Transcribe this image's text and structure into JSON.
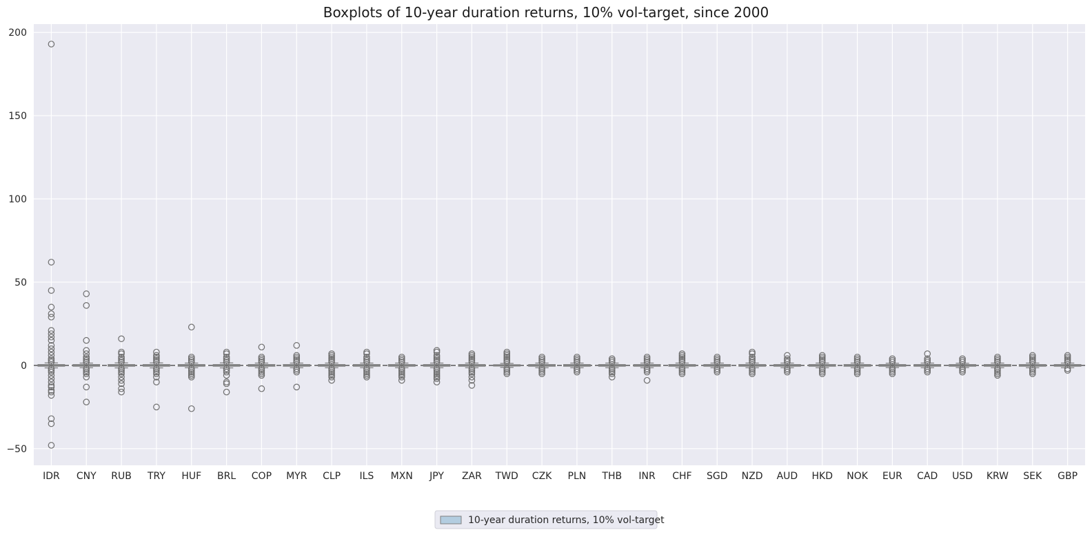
{
  "chart_data": {
    "type": "boxplot",
    "title": "Boxplots of 10-year duration returns, 10% vol-target, since 2000",
    "xlabel": "",
    "ylabel": "",
    "ylim": [
      -60,
      205
    ],
    "yticks": [
      -50,
      0,
      50,
      100,
      150,
      200
    ],
    "grid": true,
    "legend_position": "bottom-center",
    "colors": {
      "background": "#eaeaf2",
      "grid": "#ffffff",
      "box_fill": "#b3cde0",
      "box_edge": "#7f7f7f",
      "outlier": "#6e6e6e",
      "zero_line": "#3a3a3a"
    },
    "series": [
      {
        "name": "10-year duration returns, 10% vol-target",
        "boxes": [
          {
            "category": "IDR",
            "q1": -0.5,
            "median": 0.0,
            "q3": 0.5,
            "whislo": -1.5,
            "whishi": 1.5,
            "fliers": [
              193,
              62,
              45,
              35,
              31,
              29,
              21,
              19,
              17,
              15,
              12,
              10,
              8,
              6,
              4,
              3,
              2,
              -2,
              -3,
              -4,
              -6,
              -8,
              -10,
              -12,
              -13,
              -15,
              -16,
              -18,
              -32,
              -35,
              -48
            ]
          },
          {
            "category": "CNY",
            "q1": -0.5,
            "median": 0.0,
            "q3": 0.5,
            "whislo": -1.4,
            "whishi": 1.4,
            "fliers": [
              43,
              36,
              15,
              9,
              7,
              5,
              4,
              3,
              2,
              -2,
              -3,
              -4,
              -5,
              -7,
              -13,
              -22
            ]
          },
          {
            "category": "RUB",
            "q1": -0.5,
            "median": 0.0,
            "q3": 0.5,
            "whislo": -1.5,
            "whishi": 1.5,
            "fliers": [
              16,
              8,
              7,
              5,
              4,
              3,
              2,
              -2,
              -3,
              -4,
              -5,
              -7,
              -9,
              -11,
              -14,
              -16
            ]
          },
          {
            "category": "TRY",
            "q1": -0.5,
            "median": 0.0,
            "q3": 0.5,
            "whislo": -1.5,
            "whishi": 1.5,
            "fliers": [
              8,
              6,
              5,
              4,
              3,
              2,
              -2,
              -3,
              -4,
              -5,
              -7,
              -10,
              -25
            ]
          },
          {
            "category": "HUF",
            "q1": -0.5,
            "median": 0.0,
            "q3": 0.5,
            "whislo": -1.4,
            "whishi": 1.4,
            "fliers": [
              23,
              5,
              4,
              3,
              2,
              -2,
              -3,
              -4,
              -5,
              -6,
              -7,
              -26
            ]
          },
          {
            "category": "BRL",
            "q1": -0.5,
            "median": 0.0,
            "q3": 0.5,
            "whislo": -1.5,
            "whishi": 1.5,
            "fliers": [
              8,
              7,
              5,
              4,
              3,
              2,
              -2,
              -3,
              -4,
              -6,
              -10,
              -11,
              -16
            ]
          },
          {
            "category": "COP",
            "q1": -0.5,
            "median": 0.0,
            "q3": 0.5,
            "whislo": -1.4,
            "whishi": 1.4,
            "fliers": [
              11,
              5,
              4,
              3,
              2,
              -2,
              -3,
              -4,
              -5,
              -6,
              -14
            ]
          },
          {
            "category": "MYR",
            "q1": -0.5,
            "median": 0.0,
            "q3": 0.5,
            "whislo": -1.4,
            "whishi": 1.4,
            "fliers": [
              12,
              6,
              5,
              4,
              3,
              2,
              -2,
              -3,
              -4,
              -13
            ]
          },
          {
            "category": "CLP",
            "q1": -0.5,
            "median": 0.0,
            "q3": 0.5,
            "whislo": -1.4,
            "whishi": 1.4,
            "fliers": [
              7,
              6,
              5,
              4,
              3,
              2,
              -2,
              -3,
              -4,
              -5,
              -6,
              -7,
              -9
            ]
          },
          {
            "category": "ILS",
            "q1": -0.5,
            "median": 0.0,
            "q3": 0.5,
            "whislo": -1.4,
            "whishi": 1.4,
            "fliers": [
              8,
              7,
              5,
              4,
              3,
              2,
              -2,
              -3,
              -4,
              -5,
              -6,
              -7
            ]
          },
          {
            "category": "MXN",
            "q1": -0.5,
            "median": 0.0,
            "q3": 0.5,
            "whislo": -1.4,
            "whishi": 1.4,
            "fliers": [
              5,
              4,
              3,
              2,
              -2,
              -3,
              -4,
              -5,
              -6,
              -7,
              -9
            ]
          },
          {
            "category": "JPY",
            "q1": -0.5,
            "median": 0.0,
            "q3": 0.5,
            "whislo": -1.4,
            "whishi": 1.4,
            "fliers": [
              9,
              8,
              6,
              5,
              4,
              3,
              2,
              -2,
              -3,
              -4,
              -5,
              -6,
              -7,
              -8,
              -10
            ]
          },
          {
            "category": "ZAR",
            "q1": -0.5,
            "median": 0.0,
            "q3": 0.5,
            "whislo": -1.4,
            "whishi": 1.4,
            "fliers": [
              7,
              6,
              5,
              4,
              3,
              2,
              -2,
              -3,
              -4,
              -5,
              -7,
              -9,
              -12
            ]
          },
          {
            "category": "TWD",
            "q1": -0.4,
            "median": 0.0,
            "q3": 0.4,
            "whislo": -1.2,
            "whishi": 1.2,
            "fliers": [
              8,
              7,
              6,
              5,
              4,
              3,
              2,
              -2,
              -3,
              -4,
              -5
            ]
          },
          {
            "category": "CZK",
            "q1": -0.5,
            "median": 0.0,
            "q3": 0.5,
            "whislo": -1.4,
            "whishi": 1.4,
            "fliers": [
              5,
              4,
              3,
              2,
              -2,
              -3,
              -4,
              -5
            ]
          },
          {
            "category": "PLN",
            "q1": -0.5,
            "median": 0.0,
            "q3": 0.5,
            "whislo": -1.4,
            "whishi": 1.4,
            "fliers": [
              5,
              4,
              3,
              2,
              -2,
              -3,
              -4
            ]
          },
          {
            "category": "THB",
            "q1": -0.5,
            "median": 0.0,
            "q3": 0.5,
            "whislo": -1.4,
            "whishi": 1.4,
            "fliers": [
              4,
              3,
              2,
              -2,
              -3,
              -4,
              -5,
              -7
            ]
          },
          {
            "category": "INR",
            "q1": -0.5,
            "median": 0.0,
            "q3": 0.5,
            "whislo": -1.4,
            "whishi": 1.4,
            "fliers": [
              5,
              4,
              3,
              2,
              -2,
              -3,
              -4,
              -9
            ]
          },
          {
            "category": "CHF",
            "q1": -0.5,
            "median": 0.0,
            "q3": 0.5,
            "whislo": -1.4,
            "whishi": 1.4,
            "fliers": [
              7,
              6,
              5,
              4,
              3,
              2,
              -2,
              -3,
              -4,
              -5
            ]
          },
          {
            "category": "SGD",
            "q1": -0.5,
            "median": 0.0,
            "q3": 0.5,
            "whislo": -1.4,
            "whishi": 1.4,
            "fliers": [
              5,
              4,
              3,
              2,
              -2,
              -3,
              -4
            ]
          },
          {
            "category": "NZD",
            "q1": -0.5,
            "median": 0.0,
            "q3": 0.5,
            "whislo": -1.4,
            "whishi": 1.4,
            "fliers": [
              8,
              7,
              5,
              4,
              3,
              2,
              -2,
              -3,
              -4,
              -5
            ]
          },
          {
            "category": "AUD",
            "q1": -0.5,
            "median": 0.0,
            "q3": 0.5,
            "whislo": -1.4,
            "whishi": 1.4,
            "fliers": [
              6,
              4,
              3,
              2,
              -2,
              -3,
              -4
            ]
          },
          {
            "category": "HKD",
            "q1": -0.5,
            "median": 0.0,
            "q3": 0.5,
            "whislo": -1.4,
            "whishi": 1.4,
            "fliers": [
              6,
              5,
              4,
              3,
              2,
              -2,
              -3,
              -4,
              -5
            ]
          },
          {
            "category": "NOK",
            "q1": -0.5,
            "median": 0.0,
            "q3": 0.5,
            "whislo": -1.4,
            "whishi": 1.4,
            "fliers": [
              5,
              4,
              3,
              2,
              -2,
              -3,
              -4,
              -5
            ]
          },
          {
            "category": "EUR",
            "q1": -0.5,
            "median": 0.0,
            "q3": 0.5,
            "whislo": -1.3,
            "whishi": 1.3,
            "fliers": [
              4,
              3,
              2,
              -2,
              -3,
              -4,
              -5
            ]
          },
          {
            "category": "CAD",
            "q1": -0.5,
            "median": 0.0,
            "q3": 0.5,
            "whislo": -1.4,
            "whishi": 1.4,
            "fliers": [
              7,
              4,
              3,
              2,
              -2,
              -3,
              -4
            ]
          },
          {
            "category": "USD",
            "q1": -0.5,
            "median": 0.0,
            "q3": 0.5,
            "whislo": -1.3,
            "whishi": 1.3,
            "fliers": [
              4,
              3,
              2,
              -2,
              -3,
              -4
            ]
          },
          {
            "category": "KRW",
            "q1": -0.5,
            "median": 0.0,
            "q3": 0.5,
            "whislo": -1.4,
            "whishi": 1.4,
            "fliers": [
              5,
              4,
              3,
              2,
              -2,
              -3,
              -4,
              -5,
              -6
            ]
          },
          {
            "category": "SEK",
            "q1": -0.5,
            "median": 0.0,
            "q3": 0.5,
            "whislo": -1.4,
            "whishi": 1.4,
            "fliers": [
              6,
              5,
              4,
              3,
              2,
              -2,
              -3,
              -4,
              -5
            ]
          },
          {
            "category": "GBP",
            "q1": -0.5,
            "median": 0.0,
            "q3": 0.5,
            "whislo": -1.4,
            "whishi": 1.4,
            "fliers": [
              6,
              5,
              4,
              3,
              2,
              -2,
              -3
            ]
          }
        ]
      }
    ]
  }
}
